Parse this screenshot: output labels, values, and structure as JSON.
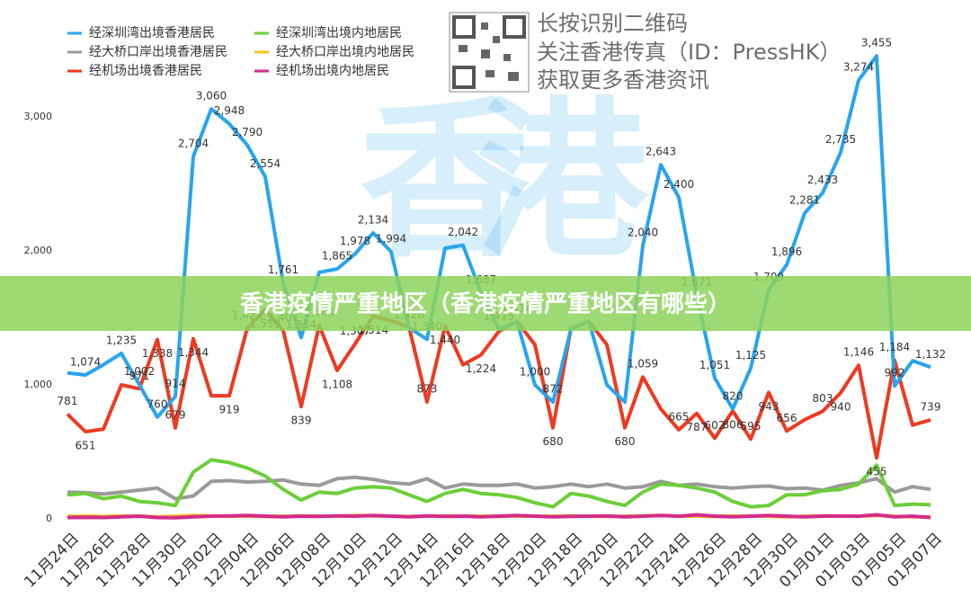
{
  "header": {
    "lines": [
      "长按识别二维码",
      "关注香港传真（ID：PressHK）",
      "获取更多香港资讯"
    ]
  },
  "watermark": [
    "香",
    "港"
  ],
  "banner": "香港疫情严重地区（香港疫情严重地区有哪些）",
  "chart_data": {
    "type": "line",
    "categories": [
      "11月24日",
      null,
      "11月26日",
      null,
      "11月28日",
      null,
      "11月30日",
      null,
      "12月02日",
      null,
      "12月04日",
      null,
      "12月06日",
      null,
      "12月08日",
      null,
      "12月10日",
      null,
      "12月12日",
      null,
      "12月14日",
      null,
      "12月16日",
      null,
      "12月18日",
      null,
      "12月20日",
      null,
      "12月18日",
      null,
      "12月20日",
      null,
      "12月22日",
      null,
      "12月24日",
      null,
      "12月26日",
      null,
      "12月28日",
      null,
      "12月30日",
      null,
      "01月01日",
      null,
      "01月03日",
      null,
      "01月05日",
      null,
      "01月07日"
    ],
    "ylim": [
      0,
      3600
    ],
    "yticks": [
      0,
      {
        "value": 1000,
        "label": "1,000"
      },
      {
        "value": 2000,
        "label": "2,000"
      },
      {
        "value": 3000,
        "label": "3,000"
      }
    ],
    "grid": false,
    "legend": "top-left",
    "series": [
      {
        "name": "经深圳湾出境香港居民",
        "color": "#2aa4ee",
        "values": [
          1090,
          1074,
          1150,
          1235,
          1002,
          760,
          914,
          2704,
          3060,
          2948,
          2790,
          2554,
          1761,
          1354,
          1840,
          1865,
          1978,
          2134,
          1994,
          1426,
          1340,
          2020,
          2042,
          1687,
          1415,
          1474,
          1000,
          872,
          1415,
          1474,
          1000,
          872,
          2040,
          2643,
          2400,
          1671,
          1051,
          820,
          1125,
          1709,
          1896,
          2281,
          2433,
          2735,
          3274,
          3455,
          992,
          1180,
          1132
        ],
        "value_labels": [
          null,
          "1,074",
          null,
          "1,235",
          "1,002",
          "760",
          "914",
          "2,704",
          "3,060",
          "2,948",
          "2,790",
          "2,554",
          "1,761",
          "1,354",
          null,
          "1,865",
          "1,978",
          "2,134",
          "1,994",
          "1,426",
          "1,340",
          null,
          "2,042",
          "1,687",
          "1,415",
          "1,474",
          "1,000",
          "872",
          null,
          null,
          null,
          null,
          "2,040",
          "2,643",
          "2,400",
          "1,671",
          "1,051",
          "820",
          "1,125",
          "1,709",
          "1,896",
          "2,281",
          "2,433",
          "2,735",
          "3,274",
          "3,455",
          "992",
          null,
          "1,132"
        ]
      },
      {
        "name": "经深圳湾出境内地居民",
        "color": "#6ccf3a",
        "values": [
          180,
          190,
          150,
          170,
          130,
          120,
          100,
          350,
          440,
          420,
          380,
          320,
          220,
          140,
          200,
          190,
          230,
          240,
          230,
          180,
          130,
          190,
          220,
          190,
          180,
          160,
          120,
          90,
          190,
          170,
          130,
          100,
          200,
          260,
          250,
          230,
          200,
          130,
          90,
          100,
          180,
          180,
          210,
          220,
          260,
          400,
          100,
          110,
          105
        ]
      },
      {
        "name": "经大桥口岸出境香港居民",
        "color": "#9a9a9a",
        "values": [
          200,
          195,
          185,
          200,
          215,
          230,
          150,
          170,
          280,
          285,
          275,
          280,
          290,
          260,
          250,
          300,
          310,
          295,
          270,
          260,
          300,
          230,
          260,
          250,
          250,
          260,
          230,
          240,
          260,
          240,
          260,
          230,
          240,
          280,
          250,
          260,
          240,
          230,
          240,
          245,
          225,
          230,
          215,
          250,
          270,
          300,
          200,
          240,
          220
        ]
      },
      {
        "name": "经大桥口岸出境内地居民",
        "color": "#f5c21b",
        "values": [
          20,
          20,
          18,
          22,
          20,
          15,
          20,
          25,
          22,
          20,
          20,
          18,
          20,
          22,
          20,
          20,
          25,
          22,
          20,
          18,
          20,
          22,
          20,
          20,
          18,
          22,
          20,
          20,
          22,
          20,
          18,
          20,
          22,
          25,
          20,
          20,
          18,
          22,
          20,
          20,
          15,
          20,
          22,
          20,
          20,
          25,
          20,
          15,
          15
        ]
      },
      {
        "name": "经机场出境香港居民",
        "color": "#ee3a22",
        "values": [
          781,
          651,
          670,
          1000,
          971,
          1338,
          679,
          1344,
          919,
          919,
          1423,
          1559,
          1407,
          839,
          1444,
          1108,
          1307,
          1514,
          1480,
          1430,
          873,
          1440,
          1150,
          1224,
          1400,
          1474,
          1300,
          680,
          1420,
          1474,
          1300,
          680,
          1059,
          820,
          665,
          787,
          602,
          806,
          595,
          943,
          656,
          740,
          803,
          940,
          1146,
          455,
          1184,
          700,
          739
        ],
        "value_labels": [
          "781",
          "651",
          null,
          null,
          "971",
          "1,338",
          "679",
          "1,344",
          null,
          "919",
          "1,423",
          "1,559",
          "1,407",
          "839",
          "1,444",
          "1,108",
          "1,307",
          "1,514",
          null,
          null,
          "873",
          "1,440",
          null,
          "1,224",
          null,
          null,
          null,
          "680",
          null,
          null,
          null,
          "680",
          "1,059",
          null,
          "665",
          "787",
          "602",
          "806",
          "595",
          "943",
          "656",
          null,
          "803",
          "940",
          "1,146",
          "455",
          "1,184",
          null,
          "739"
        ]
      },
      {
        "name": "经机场出境内地居民",
        "color": "#d42c8a",
        "values": [
          10,
          12,
          10,
          15,
          20,
          10,
          8,
          15,
          20,
          22,
          25,
          20,
          15,
          20,
          18,
          22,
          20,
          25,
          20,
          15,
          22,
          18,
          20,
          15,
          20,
          25,
          20,
          15,
          18,
          20,
          22,
          15,
          20,
          25,
          20,
          30,
          20,
          15,
          20,
          25,
          20,
          15,
          20,
          22,
          20,
          30,
          15,
          20,
          10
        ]
      }
    ]
  }
}
